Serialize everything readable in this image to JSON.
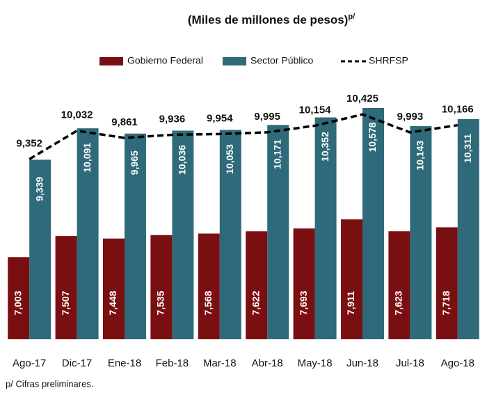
{
  "chart_data": {
    "type": "bar",
    "subtitle": "(Miles de millones de pesos)",
    "subtitle_sup": "p/",
    "footnote": "p/ Cifras preliminares.",
    "categories": [
      "Ago-17",
      "Dic-17",
      "Ene-18",
      "Feb-18",
      "Mar-18",
      "Abr-18",
      "May-18",
      "Jun-18",
      "Jul-18",
      "Ago-18"
    ],
    "series": [
      {
        "name": "Gobierno Federal",
        "type": "bar",
        "color": "#7a0f12",
        "values": [
          7003,
          7507,
          7448,
          7535,
          7568,
          7622,
          7693,
          7911,
          7623,
          7718
        ],
        "value_labels": [
          "7,003",
          "7,507",
          "7,448",
          "7,535",
          "7,568",
          "7,622",
          "7,693",
          "7,911",
          "7,623",
          "7,718"
        ]
      },
      {
        "name": "Sector Público",
        "type": "bar",
        "color": "#2e6a79",
        "values": [
          9339,
          10091,
          9965,
          10036,
          10053,
          10171,
          10352,
          10578,
          10143,
          10311
        ],
        "value_labels": [
          "9,339",
          "10,091",
          "9,965",
          "10,036",
          "10,053",
          "10,171",
          "10,352",
          "10,578",
          "10,143",
          "10,311"
        ]
      },
      {
        "name": "SHRFSP",
        "type": "line",
        "color": "#000000",
        "values": [
          9352,
          10032,
          9861,
          9936,
          9954,
          9995,
          10154,
          10425,
          9993,
          10166
        ],
        "value_labels": [
          "9,352",
          "10,032",
          "9,861",
          "9,936",
          "9,954",
          "9,995",
          "10,154",
          "10,425",
          "9,993",
          "10,166"
        ]
      }
    ]
  }
}
